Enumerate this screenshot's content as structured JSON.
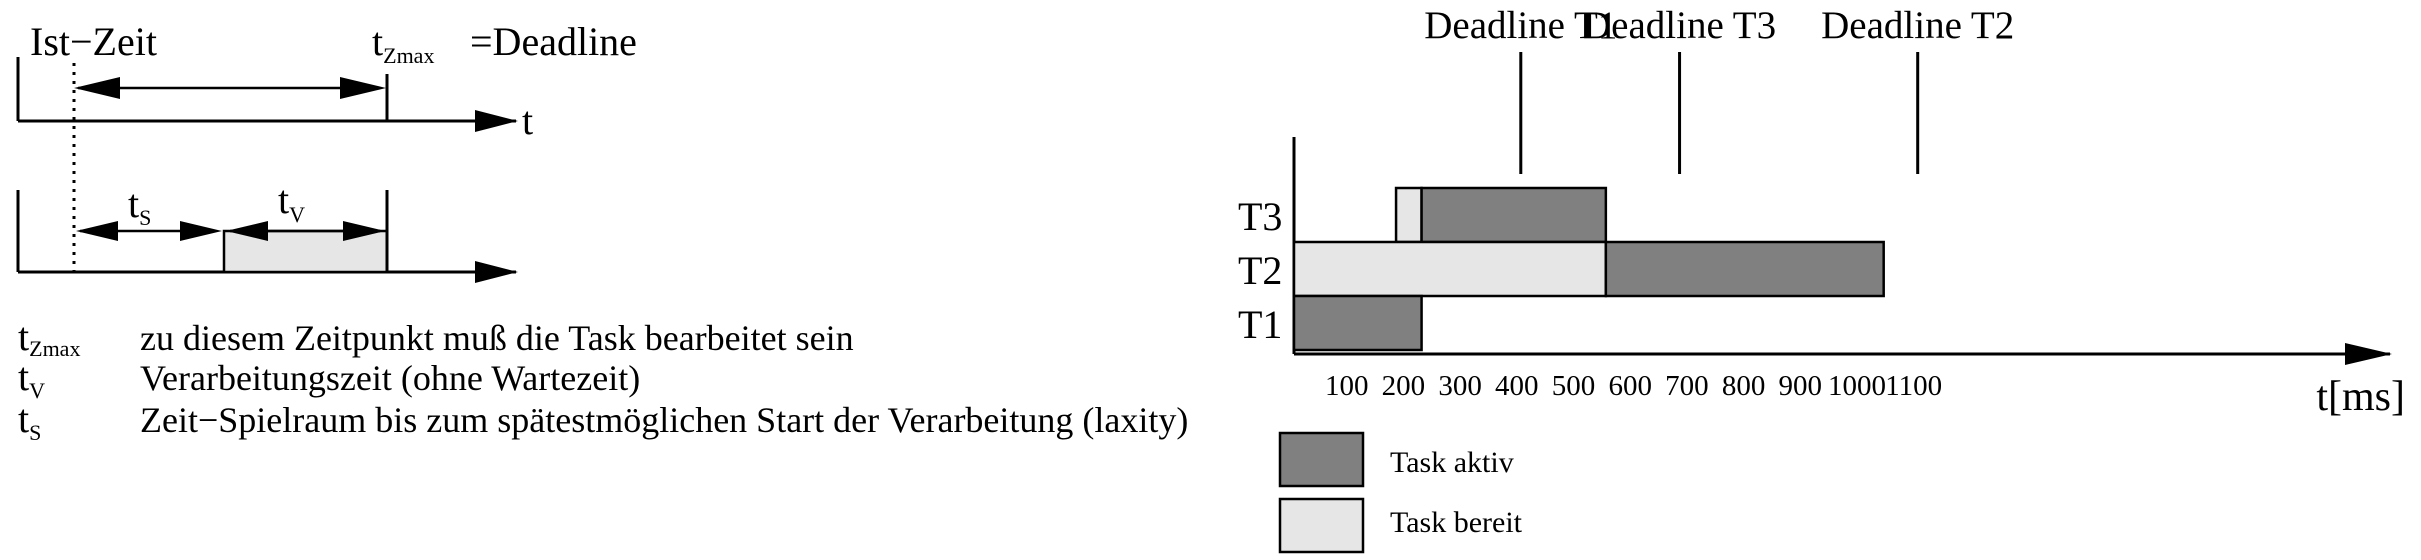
{
  "left_diagram": {
    "ist_zeit_label": "Ist−Zeit",
    "t_zmax_main": "t",
    "t_zmax_sub": "Zmax",
    "deadline_suffix": "=Deadline",
    "t_axis_label": "t",
    "ts_main": "t",
    "ts_sub": "S",
    "tv_main": "t",
    "tv_sub": "V"
  },
  "definitions": [
    {
      "symbol_main": "t",
      "symbol_sub": "Zmax",
      "text": "zu diesem Zeitpunkt muß die Task bearbeitet sein"
    },
    {
      "symbol_main": "t",
      "symbol_sub": "V",
      "text": "Verarbeitungszeit (ohne Wartezeit)"
    },
    {
      "symbol_main": "t",
      "symbol_sub": "S",
      "text": "Zeit−Spielraum bis zum spätestmöglichen Start der Verarbeitung (laxity)"
    }
  ],
  "colors": {
    "active": "#808080",
    "ready": "#e6e6e6",
    "line": "#000000"
  },
  "chart_data": {
    "type": "gantt",
    "x_unit_label": "t[ms]",
    "x_ticks": [
      100,
      200,
      300,
      400,
      500,
      600,
      700,
      800,
      900,
      1000,
      1100
    ],
    "tasks": [
      {
        "name": "T3",
        "segments": [
          {
            "start": 180,
            "end": 225,
            "state": "ready"
          },
          {
            "start": 225,
            "end": 550,
            "state": "active"
          }
        ]
      },
      {
        "name": "T2",
        "segments": [
          {
            "start": 0,
            "end": 550,
            "state": "ready"
          },
          {
            "start": 550,
            "end": 1040,
            "state": "active"
          }
        ]
      },
      {
        "name": "T1",
        "segments": [
          {
            "start": 0,
            "end": 225,
            "state": "active"
          }
        ]
      }
    ],
    "deadlines": [
      {
        "label": "Deadline T1",
        "x": 400
      },
      {
        "label": "Deadline T3",
        "x": 680
      },
      {
        "label": "Deadline T2",
        "x": 1100
      }
    ],
    "legend": [
      {
        "state": "active",
        "label": "Task aktiv"
      },
      {
        "state": "ready",
        "label": "Task bereit"
      }
    ]
  }
}
